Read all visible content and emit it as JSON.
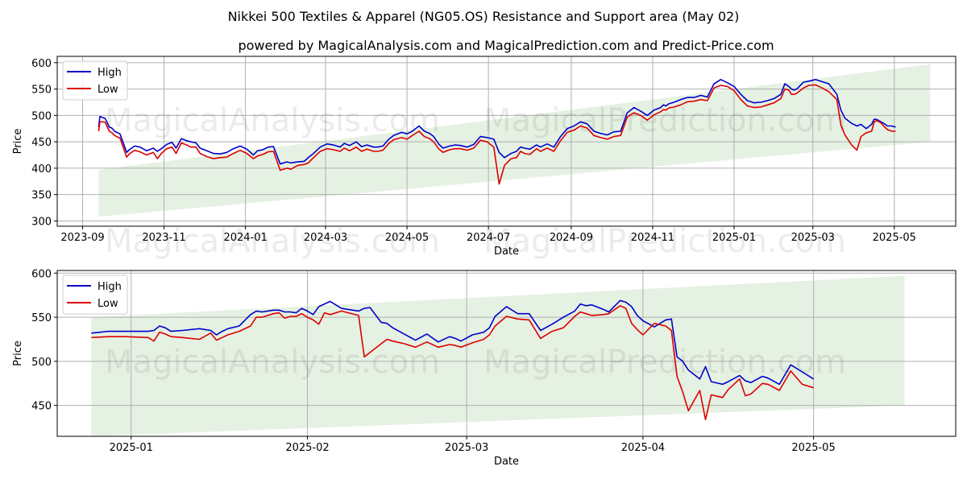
{
  "title": "Nikkei 500 Textiles & Apparel (NG05.OS) Resistance and Support area (May 02)",
  "subtitle": "powered by MagicalAnalysis.com and MagicalPrediction.com and Predict-Price.com",
  "watermarks": [
    "MagicalAnalysis.com",
    "MagicalPrediction.com"
  ],
  "colors": {
    "high": "#0000cc",
    "low": "#dd0000",
    "band": "#d7ead3",
    "grid": "#b0b0b0"
  },
  "chart_data": [
    {
      "type": "line",
      "name": "full-period",
      "xlabel": "Date",
      "ylabel": "Price",
      "x_tick_labels": [
        "2023-09",
        "2023-11",
        "2024-01",
        "2024-03",
        "2024-05",
        "2024-07",
        "2024-09",
        "2024-11",
        "2025-01",
        "2025-03",
        "2025-05"
      ],
      "x_tick_days": [
        -3,
        58,
        119,
        179,
        240,
        301,
        363,
        424,
        485,
        544,
        605
      ],
      "xlim_days": [
        -22,
        651
      ],
      "y_ticks": [
        300,
        350,
        400,
        450,
        500,
        550,
        600
      ],
      "ylim": [
        290,
        612
      ],
      "legend": [
        "High",
        "Low"
      ],
      "band": {
        "x_days": [
          9,
          632
        ],
        "lower": [
          308,
          450
        ],
        "upper": [
          397,
          597
        ]
      },
      "series_days": [
        9,
        10,
        12,
        14,
        17,
        19,
        21,
        25,
        30,
        32,
        36,
        40,
        45,
        50,
        53,
        56,
        60,
        64,
        67,
        71,
        75,
        78,
        82,
        85,
        90,
        95,
        100,
        105,
        110,
        115,
        120,
        125,
        128,
        132,
        136,
        140,
        145,
        150,
        153,
        158,
        163,
        166,
        170,
        175,
        180,
        185,
        190,
        193,
        197,
        202,
        206,
        210,
        215,
        218,
        222,
        226,
        230,
        236,
        240,
        244,
        249,
        253,
        257,
        260,
        264,
        267,
        272,
        276,
        280,
        285,
        290,
        295,
        300,
        305,
        309,
        313,
        318,
        322,
        325,
        328,
        332,
        337,
        340,
        345,
        350,
        355,
        360,
        365,
        370,
        375,
        380,
        385,
        390,
        395,
        400,
        405,
        410,
        415,
        420,
        425,
        430,
        432,
        434,
        436,
        440,
        445,
        450,
        455,
        460,
        465,
        470,
        475,
        480,
        485,
        490,
        495,
        500,
        505,
        510,
        515,
        520,
        523,
        526,
        528,
        530,
        532,
        537,
        541,
        546,
        551,
        556,
        562,
        565,
        568,
        573,
        577,
        580,
        584,
        588,
        590,
        592,
        595,
        597,
        600,
        603,
        606
      ],
      "series": [
        {
          "name": "High",
          "values": [
            478,
            498,
            496,
            494,
            478,
            476,
            470,
            465,
            430,
            435,
            442,
            440,
            433,
            438,
            432,
            437,
            445,
            449,
            438,
            456,
            452,
            450,
            448,
            438,
            433,
            428,
            427,
            430,
            437,
            442,
            436,
            425,
            433,
            435,
            440,
            441,
            408,
            412,
            410,
            412,
            413,
            420,
            428,
            440,
            446,
            444,
            440,
            447,
            443,
            450,
            441,
            444,
            440,
            440,
            442,
            454,
            462,
            468,
            465,
            470,
            480,
            470,
            466,
            460,
            445,
            438,
            442,
            444,
            443,
            440,
            445,
            460,
            458,
            455,
            430,
            420,
            428,
            432,
            440,
            438,
            436,
            444,
            440,
            446,
            440,
            460,
            475,
            480,
            488,
            484,
            470,
            466,
            463,
            469,
            470,
            505,
            515,
            508,
            500,
            510,
            515,
            520,
            518,
            522,
            525,
            530,
            534,
            534,
            538,
            535,
            560,
            568,
            562,
            555,
            540,
            528,
            524,
            525,
            528,
            532,
            540,
            560,
            555,
            550,
            548,
            550,
            563,
            565,
            568,
            564,
            560,
            540,
            510,
            495,
            485,
            480,
            483,
            475,
            483,
            493,
            492,
            488,
            485,
            480,
            480,
            478
          ]
        },
        {
          "name": "Low",
          "values": [
            470,
            488,
            488,
            487,
            470,
            467,
            462,
            457,
            421,
            427,
            434,
            431,
            425,
            430,
            418,
            428,
            437,
            440,
            428,
            448,
            444,
            440,
            440,
            428,
            422,
            418,
            420,
            421,
            428,
            434,
            428,
            418,
            423,
            426,
            431,
            432,
            396,
            400,
            398,
            405,
            407,
            410,
            420,
            432,
            437,
            435,
            432,
            438,
            433,
            440,
            432,
            436,
            432,
            432,
            434,
            446,
            454,
            458,
            455,
            462,
            470,
            460,
            456,
            450,
            436,
            430,
            435,
            437,
            437,
            434,
            438,
            453,
            450,
            440,
            370,
            405,
            418,
            420,
            432,
            428,
            426,
            437,
            432,
            438,
            432,
            452,
            468,
            472,
            480,
            476,
            462,
            458,
            455,
            460,
            462,
            497,
            505,
            500,
            491,
            501,
            507,
            511,
            510,
            514,
            516,
            520,
            526,
            527,
            530,
            528,
            552,
            557,
            555,
            547,
            530,
            518,
            515,
            516,
            520,
            524,
            532,
            550,
            548,
            540,
            540,
            542,
            552,
            557,
            558,
            552,
            545,
            530,
            482,
            463,
            444,
            434,
            460,
            467,
            470,
            488,
            490,
            486,
            480,
            473,
            470,
            470
          ]
        }
      ]
    },
    {
      "type": "line",
      "name": "recent-zoom",
      "xlabel": "Date",
      "ylabel": "Price",
      "x_tick_labels": [
        "2025-01",
        "2025-02",
        "2025-03",
        "2025-04",
        "2025-05"
      ],
      "x_tick_days": [
        0,
        31,
        59,
        90,
        120
      ],
      "xlim_days": [
        -13,
        145
      ],
      "y_ticks": [
        450,
        500,
        550,
        600
      ],
      "ylim": [
        415,
        603
      ],
      "legend": [
        "High",
        "Low"
      ],
      "band": {
        "x_days": [
          -7,
          136
        ],
        "lower": [
          415,
          450
        ],
        "upper": [
          550,
          597
        ]
      },
      "series_days": [
        -7,
        -4,
        -1,
        3,
        4,
        5,
        6,
        7,
        9,
        12,
        14,
        15,
        16,
        17,
        19,
        21,
        22,
        23,
        24,
        25,
        26,
        27,
        28,
        29,
        30,
        31,
        32,
        33,
        34,
        35,
        37,
        40,
        41,
        42,
        44,
        45,
        46,
        48,
        50,
        52,
        54,
        56,
        57,
        58,
        60,
        62,
        63,
        64,
        66,
        68,
        70,
        72,
        74,
        76,
        78,
        79,
        80,
        81,
        83,
        84,
        86,
        87,
        88,
        89,
        90,
        92,
        94,
        95,
        96,
        97,
        98,
        100,
        101,
        102,
        104,
        105,
        107,
        108,
        109,
        111,
        112,
        114,
        116,
        118,
        120
      ],
      "series": [
        {
          "name": "High",
          "values": [
            532,
            534,
            534,
            534,
            535,
            540,
            538,
            534,
            535,
            537,
            535,
            530,
            534,
            537,
            540,
            553,
            557,
            556,
            557,
            558,
            558,
            556,
            556,
            555,
            560,
            557,
            553,
            562,
            565,
            568,
            560,
            557,
            560,
            561,
            544,
            543,
            538,
            531,
            524,
            531,
            522,
            528,
            526,
            523,
            530,
            533,
            538,
            551,
            562,
            554,
            554,
            535,
            542,
            550,
            557,
            565,
            563,
            564,
            559,
            556,
            569,
            567,
            562,
            552,
            546,
            539,
            547,
            548,
            505,
            500,
            490,
            480,
            494,
            477,
            474,
            477,
            484,
            478,
            476,
            483,
            481,
            474,
            496,
            488,
            480
          ]
        },
        {
          "name": "Low",
          "values": [
            527,
            528,
            528,
            527,
            523,
            533,
            531,
            528,
            527,
            525,
            532,
            524,
            527,
            530,
            534,
            540,
            550,
            550,
            552,
            554,
            555,
            549,
            551,
            551,
            554,
            550,
            547,
            542,
            555,
            553,
            557,
            552,
            505,
            510,
            520,
            525,
            523,
            520,
            516,
            522,
            516,
            519,
            518,
            516,
            521,
            525,
            530,
            540,
            551,
            548,
            547,
            526,
            534,
            538,
            551,
            556,
            554,
            552,
            553,
            554,
            563,
            560,
            543,
            536,
            530,
            543,
            540,
            535,
            483,
            465,
            444,
            467,
            434,
            462,
            459,
            468,
            480,
            461,
            463,
            475,
            474,
            467,
            489,
            474,
            470
          ]
        }
      ]
    }
  ]
}
